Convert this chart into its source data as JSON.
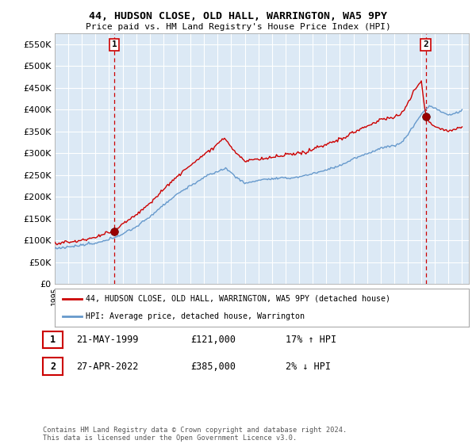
{
  "title": "44, HUDSON CLOSE, OLD HALL, WARRINGTON, WA5 9PY",
  "subtitle": "Price paid vs. HM Land Registry's House Price Index (HPI)",
  "ylim": [
    0,
    575000
  ],
  "yticks": [
    0,
    50000,
    100000,
    150000,
    200000,
    250000,
    300000,
    350000,
    400000,
    450000,
    500000,
    550000
  ],
  "plot_bg_color": "#dce9f5",
  "fig_bg_color": "#ffffff",
  "grid_color": "#ffffff",
  "sale1_date": "21-MAY-1999",
  "sale1_price": 121000,
  "sale1_hpi": "17% ↑ HPI",
  "sale2_date": "27-APR-2022",
  "sale2_price": 385000,
  "sale2_hpi": "2% ↓ HPI",
  "legend_label_red": "44, HUDSON CLOSE, OLD HALL, WARRINGTON, WA5 9PY (detached house)",
  "legend_label_blue": "HPI: Average price, detached house, Warrington",
  "footnote": "Contains HM Land Registry data © Crown copyright and database right 2024.\nThis data is licensed under the Open Government Licence v3.0.",
  "red_color": "#cc0000",
  "blue_color": "#6699cc",
  "vline_color": "#cc0000",
  "marker1_x": 1999.38,
  "marker1_y": 121000,
  "marker2_x": 2022.32,
  "marker2_y": 385000,
  "xmin": 1995,
  "xmax": 2025.5
}
